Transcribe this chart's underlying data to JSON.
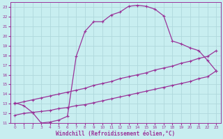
{
  "xlabel": "Windchill (Refroidissement éolien,°C)",
  "bg_color": "#c8eef0",
  "grid_color": "#b0d8dc",
  "line_color": "#993399",
  "xlim": [
    -0.5,
    23.5
  ],
  "ylim": [
    11,
    23.5
  ],
  "xticks": [
    0,
    1,
    2,
    3,
    4,
    5,
    6,
    7,
    8,
    9,
    10,
    11,
    12,
    13,
    14,
    15,
    16,
    17,
    18,
    19,
    20,
    21,
    22,
    23
  ],
  "yticks": [
    11,
    12,
    13,
    14,
    15,
    16,
    17,
    18,
    19,
    20,
    21,
    22,
    23
  ],
  "curve1_x": [
    0,
    1,
    2,
    3,
    4,
    5,
    6,
    7,
    8,
    9,
    10,
    11,
    12,
    13,
    14,
    15,
    16,
    17,
    18,
    19,
    20,
    21,
    22,
    23
  ],
  "curve1_y": [
    13.1,
    12.8,
    12.1,
    11.0,
    11.1,
    11.3,
    11.7,
    17.9,
    20.5,
    21.5,
    21.5,
    22.2,
    22.5,
    23.1,
    23.2,
    23.1,
    22.8,
    22.1,
    19.5,
    19.2,
    18.8,
    18.5,
    17.5,
    16.4
  ],
  "line2_x": [
    0,
    1,
    2,
    3,
    4,
    5,
    6,
    7,
    8,
    9,
    10,
    11,
    12,
    13,
    14,
    15,
    16,
    17,
    18,
    19,
    20,
    21,
    22,
    23
  ],
  "line2_y": [
    13.0,
    13.2,
    13.4,
    13.6,
    13.8,
    14.0,
    14.2,
    14.4,
    14.6,
    14.9,
    15.1,
    15.3,
    15.6,
    15.8,
    16.0,
    16.2,
    16.5,
    16.7,
    16.9,
    17.2,
    17.4,
    17.7,
    17.9,
    18.5
  ],
  "line3_x": [
    0,
    1,
    2,
    3,
    4,
    5,
    6,
    7,
    8,
    9,
    10,
    11,
    12,
    13,
    14,
    15,
    16,
    17,
    18,
    19,
    20,
    21,
    22,
    23
  ],
  "line3_y": [
    11.8,
    12.0,
    12.1,
    12.2,
    12.3,
    12.5,
    12.6,
    12.8,
    12.9,
    13.1,
    13.3,
    13.5,
    13.7,
    13.9,
    14.1,
    14.3,
    14.5,
    14.7,
    14.9,
    15.1,
    15.3,
    15.6,
    15.8,
    16.4
  ]
}
